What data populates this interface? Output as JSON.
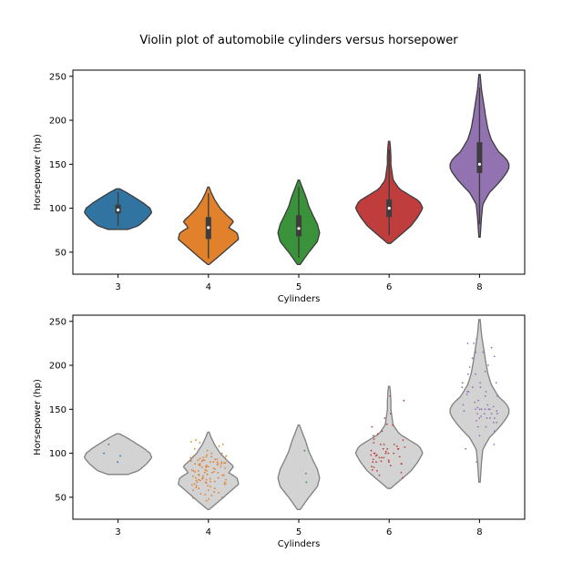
{
  "figure": {
    "title": "Violin plot of automobile cylinders versus horsepower"
  },
  "chart_data": [
    {
      "type": "violin",
      "xlabel": "Cylinders",
      "ylabel": "Horsepower (hp)",
      "categories": [
        "3",
        "4",
        "5",
        "6",
        "8"
      ],
      "ylim": [
        25,
        257
      ],
      "yticks": [
        50,
        100,
        150,
        200,
        250
      ],
      "grid": false,
      "colors": [
        "#3274a1",
        "#e1812c",
        "#3a923a",
        "#c03d3e",
        "#9372b2"
      ],
      "violins": [
        {
          "category": "3",
          "min": 76,
          "max": 122,
          "q1": 94,
          "median": 98,
          "q3": 104,
          "density": [
            [
              76,
              0.3
            ],
            [
              80,
              0.6
            ],
            [
              88,
              0.85
            ],
            [
              95,
              1.0
            ],
            [
              100,
              0.95
            ],
            [
              106,
              0.75
            ],
            [
              112,
              0.5
            ],
            [
              118,
              0.25
            ],
            [
              122,
              0.05
            ]
          ]
        },
        {
          "category": "4",
          "min": 36,
          "max": 124,
          "q1": 65,
          "median": 78,
          "q3": 90,
          "density": [
            [
              36,
              0.02
            ],
            [
              45,
              0.3
            ],
            [
              55,
              0.6
            ],
            [
              65,
              0.9
            ],
            [
              72,
              0.85
            ],
            [
              78,
              0.6
            ],
            [
              85,
              0.75
            ],
            [
              92,
              0.55
            ],
            [
              100,
              0.35
            ],
            [
              110,
              0.18
            ],
            [
              118,
              0.08
            ],
            [
              124,
              0.02
            ]
          ]
        },
        {
          "category": "5",
          "min": 36,
          "max": 132,
          "q1": 68,
          "median": 77,
          "q3": 92,
          "density": [
            [
              36,
              0.04
            ],
            [
              50,
              0.3
            ],
            [
              62,
              0.55
            ],
            [
              72,
              0.62
            ],
            [
              82,
              0.55
            ],
            [
              92,
              0.42
            ],
            [
              102,
              0.3
            ],
            [
              112,
              0.22
            ],
            [
              122,
              0.12
            ],
            [
              132,
              0.02
            ]
          ]
        },
        {
          "category": "6",
          "min": 60,
          "max": 176,
          "q1": 90,
          "median": 100,
          "q3": 110,
          "density": [
            [
              60,
              0.04
            ],
            [
              70,
              0.35
            ],
            [
              80,
              0.65
            ],
            [
              90,
              0.85
            ],
            [
              100,
              1.0
            ],
            [
              108,
              0.9
            ],
            [
              115,
              0.6
            ],
            [
              122,
              0.3
            ],
            [
              132,
              0.12
            ],
            [
              142,
              0.08
            ],
            [
              150,
              0.05
            ],
            [
              160,
              0.05
            ],
            [
              168,
              0.04
            ],
            [
              176,
              0.02
            ]
          ]
        },
        {
          "category": "8",
          "min": 67,
          "max": 252,
          "q1": 140,
          "median": 150,
          "q3": 175,
          "density": [
            [
              67,
              0.02
            ],
            [
              90,
              0.06
            ],
            [
              105,
              0.1
            ],
            [
              118,
              0.3
            ],
            [
              130,
              0.6
            ],
            [
              140,
              0.8
            ],
            [
              148,
              0.9
            ],
            [
              156,
              0.8
            ],
            [
              165,
              0.55
            ],
            [
              178,
              0.35
            ],
            [
              190,
              0.25
            ],
            [
              205,
              0.18
            ],
            [
              220,
              0.12
            ],
            [
              235,
              0.06
            ],
            [
              252,
              0.02
            ]
          ]
        }
      ]
    },
    {
      "type": "violin-strip",
      "xlabel": "Cylinders",
      "ylabel": "Horsepower (hp)",
      "categories": [
        "3",
        "4",
        "5",
        "6",
        "8"
      ],
      "ylim": [
        25,
        257
      ],
      "yticks": [
        50,
        100,
        150,
        200,
        250
      ],
      "grid": false,
      "violin_fill": "#d3d3d3",
      "violin_edge": "#808080",
      "point_colors": [
        "#3274a1",
        "#e1812c",
        "#3a923a",
        "#c03d3e",
        "#9372b2"
      ],
      "points": [
        {
          "category": "3",
          "values": [
            90,
            97,
            100,
            110
          ]
        },
        {
          "category": "4",
          "values": [
            46,
            48,
            49,
            50,
            52,
            53,
            54,
            55,
            56,
            58,
            58,
            60,
            60,
            61,
            62,
            63,
            63,
            64,
            65,
            65,
            65,
            66,
            67,
            67,
            67,
            68,
            68,
            69,
            69,
            70,
            70,
            70,
            71,
            71,
            72,
            72,
            72,
            74,
            74,
            75,
            75,
            75,
            76,
            76,
            78,
            78,
            78,
            79,
            79,
            80,
            80,
            80,
            81,
            81,
            82,
            83,
            83,
            84,
            84,
            85,
            85,
            85,
            86,
            86,
            86,
            87,
            87,
            88,
            88,
            88,
            88,
            89,
            89,
            90,
            90,
            90,
            90,
            91,
            91,
            92,
            92,
            92,
            93,
            93,
            94,
            95,
            95,
            95,
            96,
            96,
            97,
            97,
            98,
            100,
            100,
            103,
            105,
            108,
            110,
            112,
            113,
            115
          ]
        },
        {
          "category": "5",
          "values": [
            67,
            77,
            103
          ]
        },
        {
          "category": "6",
          "values": [
            72,
            75,
            78,
            80,
            81,
            84,
            85,
            86,
            88,
            88,
            90,
            90,
            90,
            91,
            92,
            93,
            95,
            95,
            95,
            96,
            97,
            98,
            98,
            100,
            100,
            100,
            100,
            100,
            102,
            103,
            105,
            105,
            105,
            105,
            107,
            108,
            110,
            110,
            110,
            112,
            115,
            116,
            120,
            122,
            125,
            130,
            132,
            133,
            140,
            145,
            160,
            165
          ]
        },
        {
          "category": "8",
          "values": [
            90,
            105,
            110,
            110,
            120,
            125,
            130,
            130,
            135,
            135,
            137,
            140,
            140,
            140,
            140,
            142,
            145,
            145,
            145,
            145,
            148,
            148,
            150,
            150,
            150,
            150,
            150,
            150,
            152,
            153,
            155,
            155,
            158,
            160,
            165,
            165,
            167,
            170,
            170,
            170,
            175,
            175,
            175,
            180,
            180,
            180,
            190,
            190,
            193,
            198,
            200,
            208,
            210,
            215,
            215,
            220,
            225,
            225,
            230
          ]
        }
      ]
    }
  ]
}
